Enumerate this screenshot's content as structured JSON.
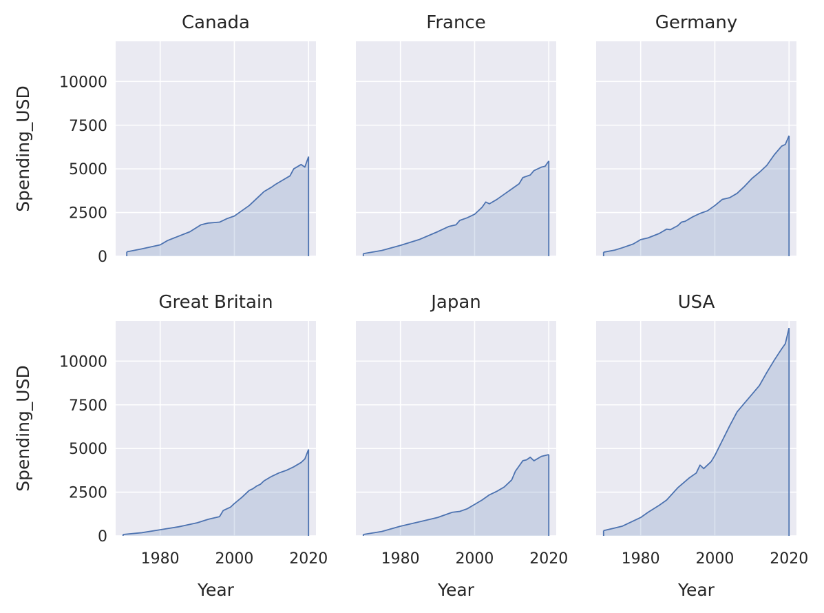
{
  "chart_data": {
    "type": "area",
    "layout": "facet-grid",
    "facet_columns": 3,
    "xlabel": "Year",
    "ylabel": "Spending_USD",
    "xlim": [
      1968,
      2022
    ],
    "ylim": [
      0,
      12300
    ],
    "xticks": [
      1980,
      2000,
      2020
    ],
    "yticks": [
      0,
      2500,
      5000,
      7500,
      10000
    ],
    "grid": true,
    "sharex": true,
    "sharey": true,
    "facets": [
      {
        "title": "Canada",
        "x": [
          1971,
          1975,
          1980,
          1982,
          1985,
          1988,
          1991,
          1993,
          1996,
          1998,
          2000,
          2002,
          2004,
          2006,
          2008,
          2010,
          2011,
          2013,
          2015,
          2016,
          2018,
          2019,
          2020
        ],
        "y": [
          250,
          420,
          650,
          900,
          1150,
          1400,
          1800,
          1900,
          1950,
          2150,
          2300,
          2600,
          2900,
          3300,
          3700,
          3950,
          4100,
          4350,
          4600,
          5000,
          5250,
          5100,
          5700
        ]
      },
      {
        "title": "France",
        "x": [
          1970,
          1975,
          1980,
          1985,
          1990,
          1993,
          1995,
          1996,
          1998,
          2000,
          2002,
          2003,
          2004,
          2006,
          2008,
          2010,
          2012,
          2013,
          2015,
          2016,
          2018,
          2019,
          2020
        ],
        "y": [
          150,
          330,
          620,
          950,
          1400,
          1700,
          1800,
          2050,
          2200,
          2400,
          2800,
          3100,
          3000,
          3250,
          3550,
          3850,
          4150,
          4500,
          4650,
          4900,
          5100,
          5150,
          5450
        ]
      },
      {
        "title": "Germany",
        "x": [
          1970,
          1973,
          1975,
          1978,
          1980,
          1982,
          1985,
          1987,
          1988,
          1990,
          1991,
          1992,
          1994,
          1996,
          1998,
          2000,
          2002,
          2004,
          2006,
          2008,
          2010,
          2012,
          2014,
          2016,
          2018,
          2019,
          2020
        ],
        "y": [
          230,
          350,
          480,
          700,
          950,
          1050,
          1300,
          1550,
          1520,
          1750,
          1950,
          2000,
          2250,
          2450,
          2600,
          2900,
          3250,
          3350,
          3600,
          4000,
          4450,
          4800,
          5200,
          5800,
          6300,
          6400,
          6900
        ]
      },
      {
        "title": "Great Britain",
        "x": [
          1970,
          1975,
          1980,
          1982,
          1985,
          1990,
          1993,
          1996,
          1997,
          1999,
          2000,
          2002,
          2004,
          2005,
          2006,
          2007,
          2008,
          2010,
          2012,
          2014,
          2016,
          2018,
          2019,
          2020
        ],
        "y": [
          80,
          180,
          350,
          420,
          520,
          750,
          950,
          1100,
          1450,
          1650,
          1850,
          2200,
          2600,
          2700,
          2850,
          2950,
          3150,
          3400,
          3600,
          3750,
          3950,
          4200,
          4400,
          4950
        ]
      },
      {
        "title": "Japan",
        "x": [
          1970,
          1975,
          1980,
          1982,
          1985,
          1990,
          1994,
          1996,
          1998,
          2000,
          2002,
          2004,
          2006,
          2008,
          2010,
          2011,
          2012,
          2013,
          2014,
          2015,
          2016,
          2018,
          2020
        ],
        "y": [
          80,
          250,
          550,
          650,
          800,
          1050,
          1350,
          1400,
          1550,
          1800,
          2050,
          2350,
          2550,
          2800,
          3200,
          3700,
          4000,
          4300,
          4350,
          4500,
          4300,
          4550,
          4650
        ]
      },
      {
        "title": "USA",
        "x": [
          1970,
          1975,
          1980,
          1982,
          1985,
          1987,
          1990,
          1993,
          1995,
          1996,
          1997,
          1999,
          2000,
          2002,
          2004,
          2006,
          2008,
          2010,
          2012,
          2014,
          2016,
          2018,
          2019,
          2020
        ],
        "y": [
          300,
          550,
          1050,
          1350,
          1750,
          2050,
          2750,
          3300,
          3600,
          4050,
          3850,
          4250,
          4600,
          5450,
          6300,
          7100,
          7600,
          8100,
          8600,
          9350,
          10050,
          10700,
          11000,
          11900
        ]
      }
    ]
  }
}
